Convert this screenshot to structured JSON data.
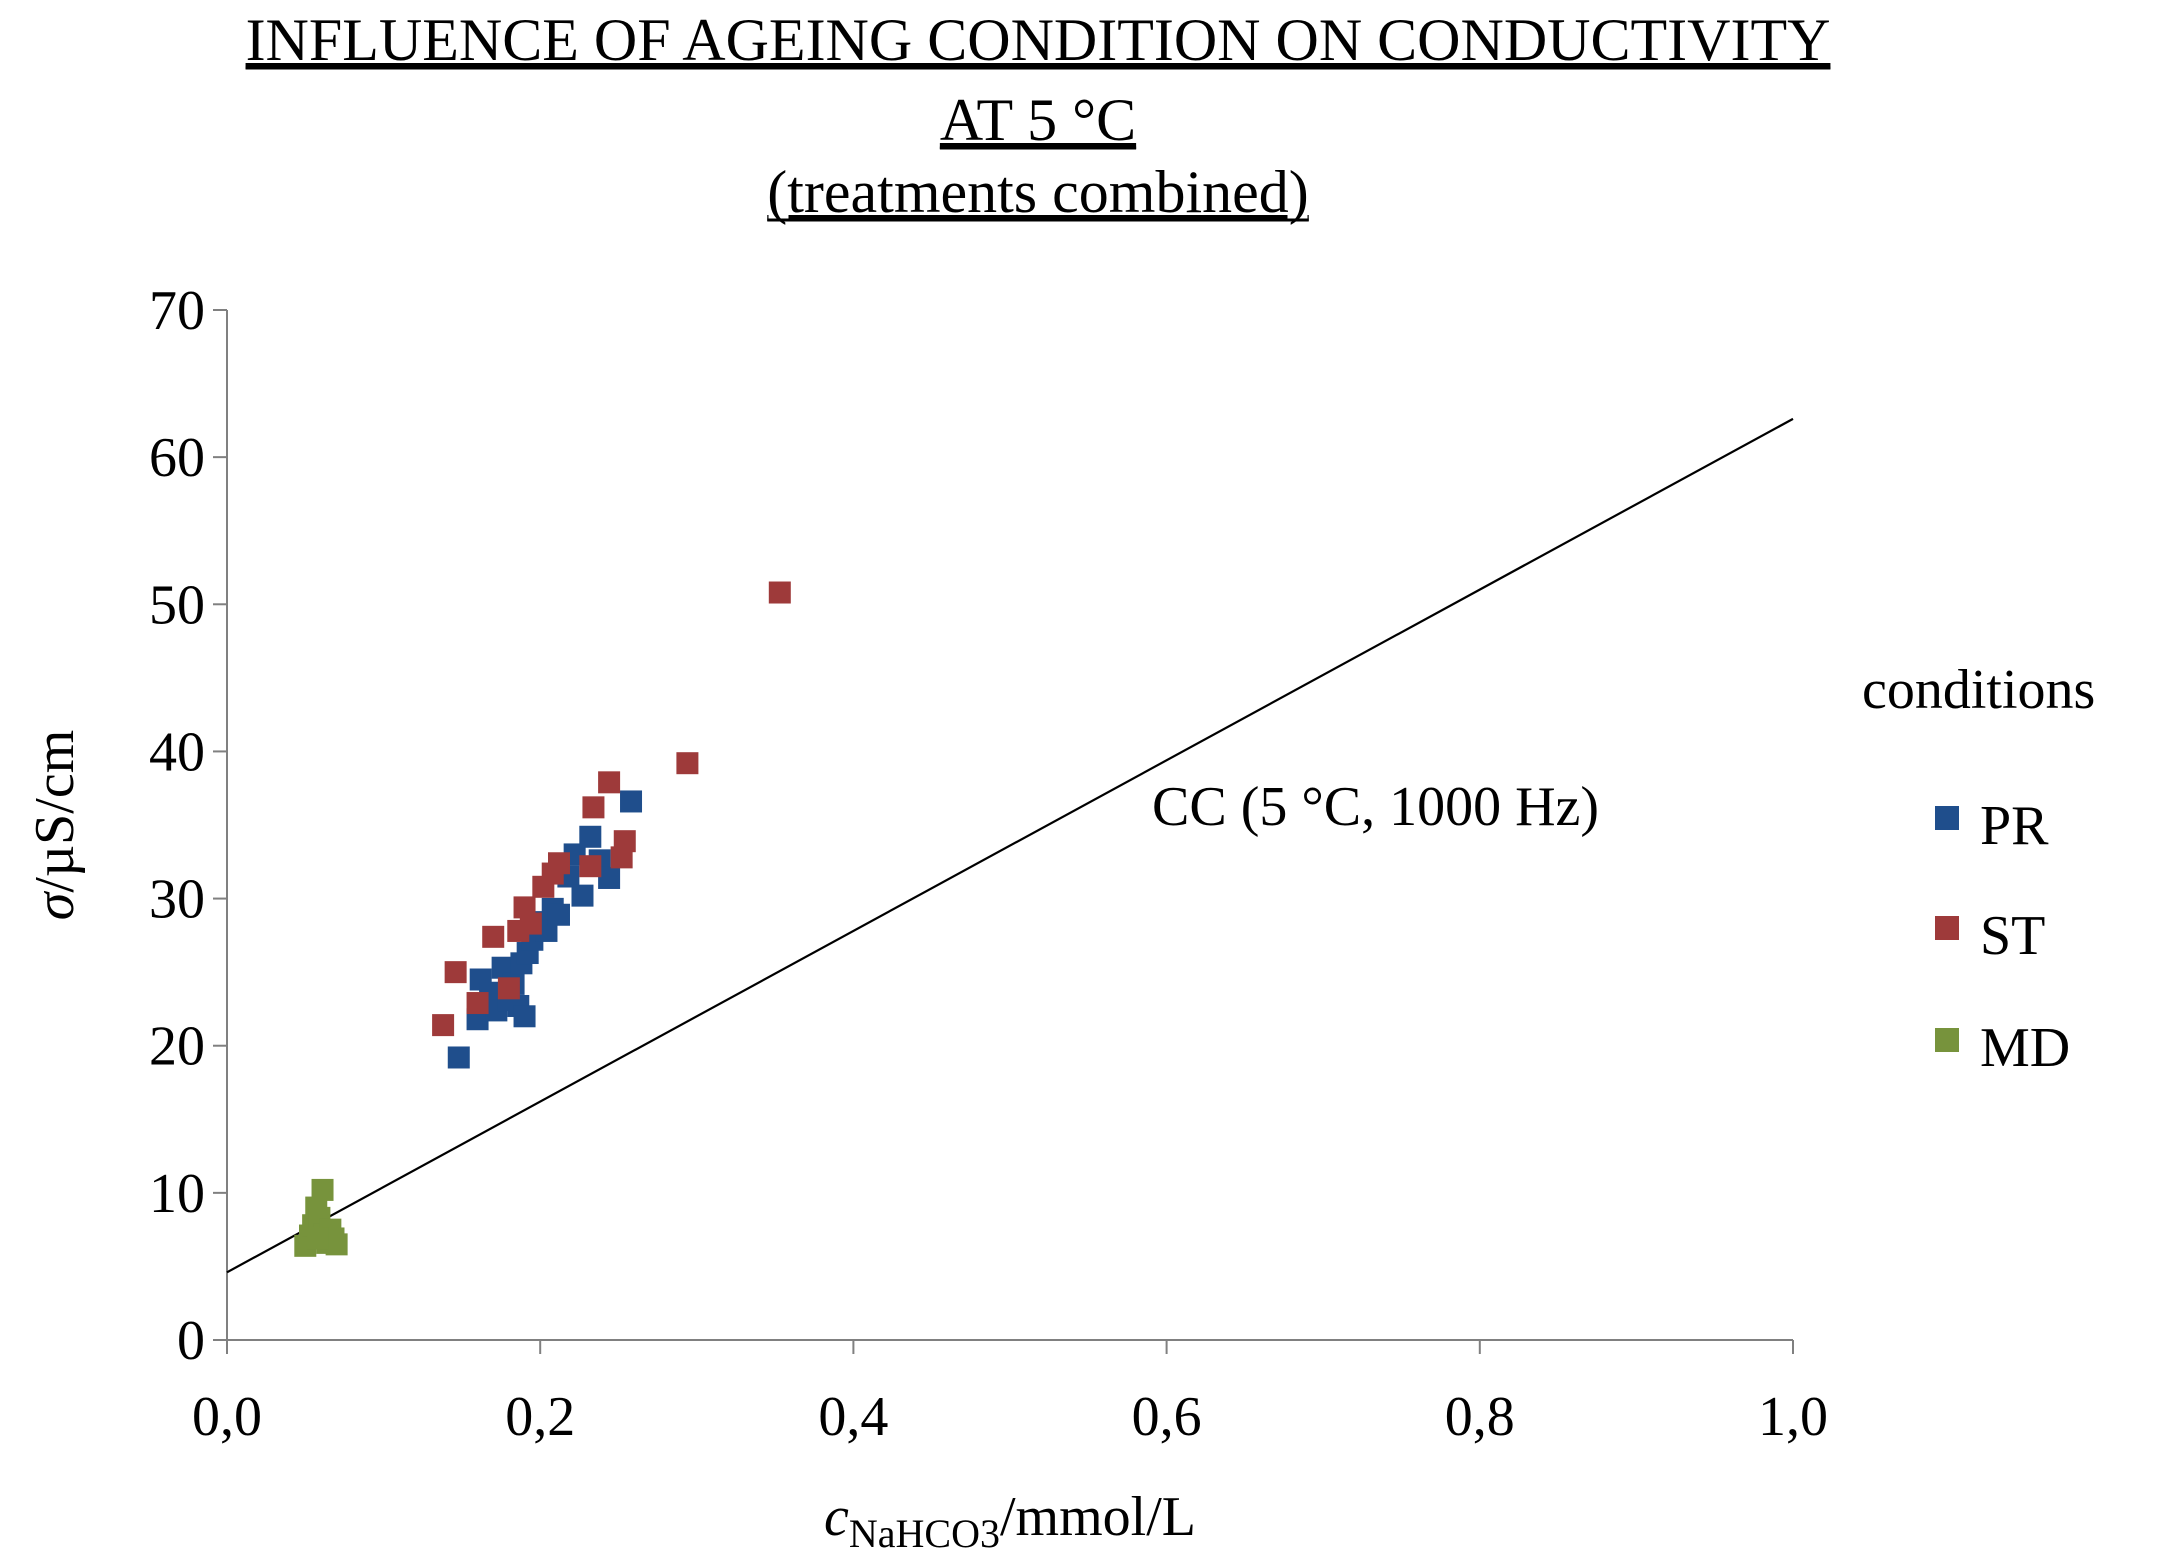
{
  "chart_data": {
    "type": "scatter",
    "title_lines": [
      "INFLUENCE OF AGEING CONDITION ON CONDUCTIVITY",
      "AT 5 °C",
      "(treatments combined)"
    ],
    "xlabel": {
      "symbol": "c",
      "subscript": "NaHCO3",
      "unit": "/mmol/L"
    },
    "ylabel": {
      "symbol": "σ",
      "unit": "/µS/cm"
    },
    "xlim": [
      0,
      1.0
    ],
    "ylim": [
      0,
      70
    ],
    "x_ticks": [
      "0,0",
      "0,2",
      "0,4",
      "0,6",
      "0,8",
      "1,0"
    ],
    "y_ticks": [
      "0",
      "10",
      "20",
      "30",
      "40",
      "50",
      "60",
      "70"
    ],
    "grid": false,
    "legend_title": "conditions",
    "legend_position": "right",
    "series": [
      {
        "name": "PR",
        "color": "#1F4E8C",
        "marker": "square",
        "points": [
          [
            0.148,
            19.2
          ],
          [
            0.16,
            21.8
          ],
          [
            0.162,
            24.5
          ],
          [
            0.168,
            23.6
          ],
          [
            0.172,
            22.4
          ],
          [
            0.176,
            25.3
          ],
          [
            0.18,
            23.1
          ],
          [
            0.183,
            24.2
          ],
          [
            0.186,
            22.7
          ],
          [
            0.188,
            25.6
          ],
          [
            0.19,
            22.0
          ],
          [
            0.192,
            26.3
          ],
          [
            0.195,
            27.2
          ],
          [
            0.2,
            28.4
          ],
          [
            0.204,
            27.8
          ],
          [
            0.208,
            29.3
          ],
          [
            0.212,
            28.9
          ],
          [
            0.218,
            31.5
          ],
          [
            0.222,
            33.0
          ],
          [
            0.227,
            30.2
          ],
          [
            0.232,
            34.2
          ],
          [
            0.238,
            32.6
          ],
          [
            0.244,
            31.4
          ],
          [
            0.258,
            36.6
          ]
        ]
      },
      {
        "name": "ST",
        "color": "#9E3A3A",
        "marker": "square",
        "points": [
          [
            0.138,
            21.4
          ],
          [
            0.146,
            25.0
          ],
          [
            0.16,
            22.9
          ],
          [
            0.17,
            27.4
          ],
          [
            0.18,
            23.9
          ],
          [
            0.186,
            27.8
          ],
          [
            0.19,
            29.4
          ],
          [
            0.194,
            28.3
          ],
          [
            0.202,
            30.8
          ],
          [
            0.208,
            31.7
          ],
          [
            0.212,
            32.4
          ],
          [
            0.232,
            32.2
          ],
          [
            0.234,
            36.2
          ],
          [
            0.244,
            37.9
          ],
          [
            0.252,
            32.8
          ],
          [
            0.254,
            33.9
          ],
          [
            0.294,
            39.2
          ],
          [
            0.353,
            50.8
          ]
        ]
      },
      {
        "name": "MD",
        "color": "#77933C",
        "marker": "square",
        "points": [
          [
            0.05,
            6.4
          ],
          [
            0.053,
            7.1
          ],
          [
            0.055,
            7.8
          ],
          [
            0.057,
            9.0
          ],
          [
            0.059,
            8.3
          ],
          [
            0.061,
            10.2
          ],
          [
            0.062,
            7.2
          ],
          [
            0.064,
            6.6
          ],
          [
            0.066,
            7.5
          ],
          [
            0.068,
            6.9
          ],
          [
            0.07,
            6.5
          ],
          [
            0.058,
            6.9
          ]
        ]
      }
    ],
    "reference_line": {
      "label": "CC (5 °C, 1000 Hz)",
      "color": "#000000",
      "intercept": 4.6,
      "slope": 58.0,
      "x_range": [
        0,
        1.0
      ]
    }
  }
}
